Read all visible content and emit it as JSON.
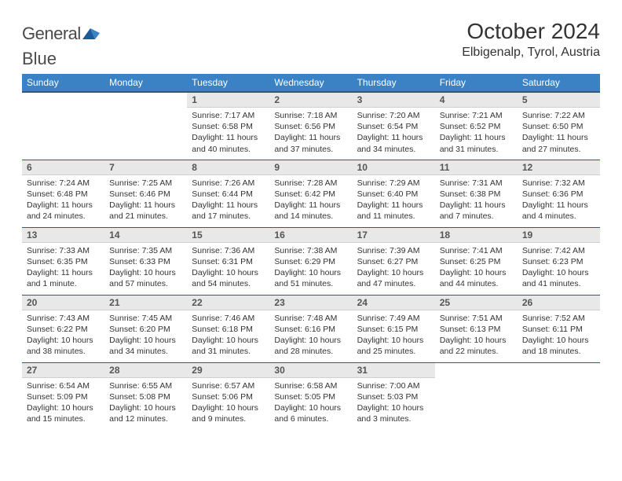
{
  "logo": {
    "word1": "General",
    "word2": "Blue"
  },
  "title": "October 2024",
  "location": "Elbigenalp, Tyrol, Austria",
  "colors": {
    "header_bg": "#3b82c4",
    "header_border": "#2a5a8a",
    "daynum_bg": "#e8e8e8",
    "text": "#333333",
    "logo_text": "#4a4a4a",
    "logo_accent": "#1e5a9a"
  },
  "dayNames": [
    "Sunday",
    "Monday",
    "Tuesday",
    "Wednesday",
    "Thursday",
    "Friday",
    "Saturday"
  ],
  "weeks": [
    [
      null,
      null,
      {
        "n": "1",
        "sr": "7:17 AM",
        "ss": "6:58 PM",
        "dl": "11 hours and 40 minutes."
      },
      {
        "n": "2",
        "sr": "7:18 AM",
        "ss": "6:56 PM",
        "dl": "11 hours and 37 minutes."
      },
      {
        "n": "3",
        "sr": "7:20 AM",
        "ss": "6:54 PM",
        "dl": "11 hours and 34 minutes."
      },
      {
        "n": "4",
        "sr": "7:21 AM",
        "ss": "6:52 PM",
        "dl": "11 hours and 31 minutes."
      },
      {
        "n": "5",
        "sr": "7:22 AM",
        "ss": "6:50 PM",
        "dl": "11 hours and 27 minutes."
      }
    ],
    [
      {
        "n": "6",
        "sr": "7:24 AM",
        "ss": "6:48 PM",
        "dl": "11 hours and 24 minutes."
      },
      {
        "n": "7",
        "sr": "7:25 AM",
        "ss": "6:46 PM",
        "dl": "11 hours and 21 minutes."
      },
      {
        "n": "8",
        "sr": "7:26 AM",
        "ss": "6:44 PM",
        "dl": "11 hours and 17 minutes."
      },
      {
        "n": "9",
        "sr": "7:28 AM",
        "ss": "6:42 PM",
        "dl": "11 hours and 14 minutes."
      },
      {
        "n": "10",
        "sr": "7:29 AM",
        "ss": "6:40 PM",
        "dl": "11 hours and 11 minutes."
      },
      {
        "n": "11",
        "sr": "7:31 AM",
        "ss": "6:38 PM",
        "dl": "11 hours and 7 minutes."
      },
      {
        "n": "12",
        "sr": "7:32 AM",
        "ss": "6:36 PM",
        "dl": "11 hours and 4 minutes."
      }
    ],
    [
      {
        "n": "13",
        "sr": "7:33 AM",
        "ss": "6:35 PM",
        "dl": "11 hours and 1 minute."
      },
      {
        "n": "14",
        "sr": "7:35 AM",
        "ss": "6:33 PM",
        "dl": "10 hours and 57 minutes."
      },
      {
        "n": "15",
        "sr": "7:36 AM",
        "ss": "6:31 PM",
        "dl": "10 hours and 54 minutes."
      },
      {
        "n": "16",
        "sr": "7:38 AM",
        "ss": "6:29 PM",
        "dl": "10 hours and 51 minutes."
      },
      {
        "n": "17",
        "sr": "7:39 AM",
        "ss": "6:27 PM",
        "dl": "10 hours and 47 minutes."
      },
      {
        "n": "18",
        "sr": "7:41 AM",
        "ss": "6:25 PM",
        "dl": "10 hours and 44 minutes."
      },
      {
        "n": "19",
        "sr": "7:42 AM",
        "ss": "6:23 PM",
        "dl": "10 hours and 41 minutes."
      }
    ],
    [
      {
        "n": "20",
        "sr": "7:43 AM",
        "ss": "6:22 PM",
        "dl": "10 hours and 38 minutes."
      },
      {
        "n": "21",
        "sr": "7:45 AM",
        "ss": "6:20 PM",
        "dl": "10 hours and 34 minutes."
      },
      {
        "n": "22",
        "sr": "7:46 AM",
        "ss": "6:18 PM",
        "dl": "10 hours and 31 minutes."
      },
      {
        "n": "23",
        "sr": "7:48 AM",
        "ss": "6:16 PM",
        "dl": "10 hours and 28 minutes."
      },
      {
        "n": "24",
        "sr": "7:49 AM",
        "ss": "6:15 PM",
        "dl": "10 hours and 25 minutes."
      },
      {
        "n": "25",
        "sr": "7:51 AM",
        "ss": "6:13 PM",
        "dl": "10 hours and 22 minutes."
      },
      {
        "n": "26",
        "sr": "7:52 AM",
        "ss": "6:11 PM",
        "dl": "10 hours and 18 minutes."
      }
    ],
    [
      {
        "n": "27",
        "sr": "6:54 AM",
        "ss": "5:09 PM",
        "dl": "10 hours and 15 minutes."
      },
      {
        "n": "28",
        "sr": "6:55 AM",
        "ss": "5:08 PM",
        "dl": "10 hours and 12 minutes."
      },
      {
        "n": "29",
        "sr": "6:57 AM",
        "ss": "5:06 PM",
        "dl": "10 hours and 9 minutes."
      },
      {
        "n": "30",
        "sr": "6:58 AM",
        "ss": "5:05 PM",
        "dl": "10 hours and 6 minutes."
      },
      {
        "n": "31",
        "sr": "7:00 AM",
        "ss": "5:03 PM",
        "dl": "10 hours and 3 minutes."
      },
      null,
      null
    ]
  ],
  "labels": {
    "sunrise": "Sunrise:",
    "sunset": "Sunset:",
    "daylight": "Daylight:"
  }
}
